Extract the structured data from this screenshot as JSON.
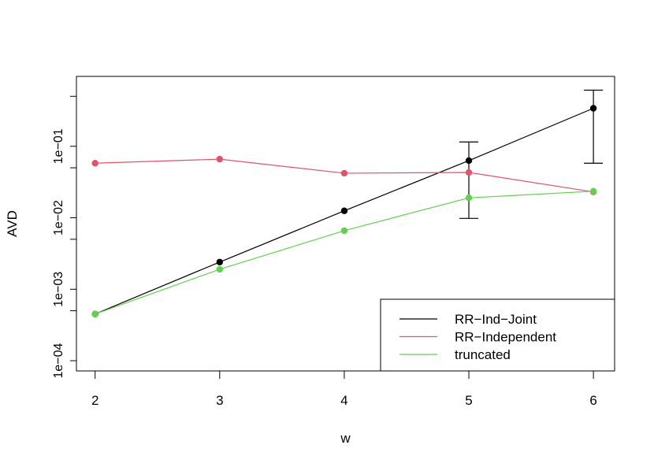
{
  "chart_data": {
    "type": "line",
    "title": "",
    "xlabel": "w",
    "ylabel": "AVD",
    "y_scale": "log",
    "x_ticks": [
      2,
      3,
      4,
      5,
      6
    ],
    "x_tick_labels": [
      "2",
      "3",
      "4",
      "5",
      "6"
    ],
    "y_ticks": [
      0.0001,
      0.001,
      0.01,
      0.1
    ],
    "y_tick_labels": [
      "1e−04",
      "1e−03",
      "1e−02",
      "1e−01"
    ],
    "xlim": [
      1.85,
      6.17
    ],
    "ylim": [
      7.2e-05,
      0.95
    ],
    "grid": false,
    "legend_position": "bottom-right",
    "x": [
      2,
      3,
      4,
      5,
      6
    ],
    "series": [
      {
        "name": "RR−Ind−Joint",
        "color": "#000000",
        "values": [
          0.00045,
          0.0024,
          0.0125,
          0.063,
          0.34
        ],
        "error_bars": [
          {
            "x": 5,
            "low": 0.0098,
            "high": 0.115
          },
          {
            "x": 6,
            "low": 0.058,
            "high": 0.61
          }
        ]
      },
      {
        "name": "RR−Independent",
        "color": "#DF536B",
        "values": [
          0.058,
          0.066,
          0.042,
          0.043,
          0.023
        ]
      },
      {
        "name": "truncated",
        "color": "#61D04F",
        "values": [
          0.00045,
          0.0019,
          0.0066,
          0.019,
          0.0235
        ]
      }
    ]
  }
}
